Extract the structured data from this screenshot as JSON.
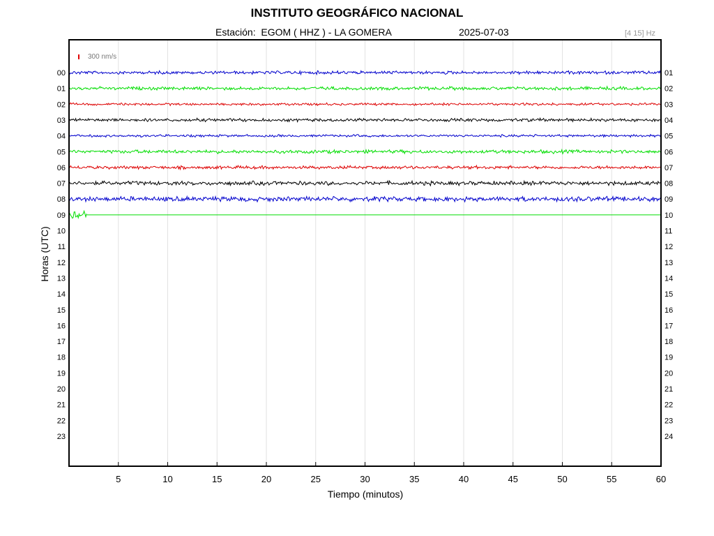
{
  "chart_data": {
    "type": "line",
    "title": "INSTITUTO GEOGRÁFICO NACIONAL",
    "subtitle": "Estación:  EGOM ( HHZ ) - LA GOMERA",
    "date": "2025-07-03",
    "filter_label": "[4 15] Hz",
    "scale_label": "300 nm/s",
    "xlabel": "Tiempo (minutos)",
    "ylabel": "Horas (UTC)",
    "xlim": [
      0,
      60
    ],
    "x_ticks": [
      "5",
      "10",
      "15",
      "20",
      "25",
      "30",
      "35",
      "40",
      "45",
      "50",
      "55",
      "60"
    ],
    "y_ticks_left": [
      "00",
      "01",
      "02",
      "03",
      "04",
      "05",
      "06",
      "07",
      "08",
      "09",
      "10",
      "11",
      "12",
      "13",
      "14",
      "15",
      "16",
      "17",
      "18",
      "19",
      "20",
      "21",
      "22",
      "23"
    ],
    "y_ticks_right": [
      "01",
      "02",
      "03",
      "04",
      "05",
      "06",
      "07",
      "08",
      "09",
      "10",
      "11",
      "12",
      "13",
      "14",
      "15",
      "16",
      "17",
      "18",
      "19",
      "20",
      "21",
      "22",
      "23",
      "24"
    ],
    "grid": "vertical",
    "colors": [
      "#0000cc",
      "#00dd00",
      "#dd0000",
      "#000000"
    ],
    "series": [
      {
        "hour": "00",
        "color": "#0000cc",
        "x_end": 60,
        "amplitude": 2
      },
      {
        "hour": "01",
        "color": "#00dd00",
        "x_end": 60,
        "amplitude": 2
      },
      {
        "hour": "02",
        "color": "#dd0000",
        "x_end": 60,
        "amplitude": 1.5
      },
      {
        "hour": "03",
        "color": "#000000",
        "x_end": 60,
        "amplitude": 2
      },
      {
        "hour": "04",
        "color": "#0000cc",
        "x_end": 60,
        "amplitude": 1.5
      },
      {
        "hour": "05",
        "color": "#00dd00",
        "x_end": 60,
        "amplitude": 2.2
      },
      {
        "hour": "06",
        "color": "#dd0000",
        "x_end": 60,
        "amplitude": 2
      },
      {
        "hour": "07",
        "color": "#000000",
        "x_end": 60,
        "amplitude": 2.5
      },
      {
        "hour": "08",
        "color": "#0000cc",
        "x_end": 60,
        "amplitude": 3
      },
      {
        "hour": "09",
        "color": "#00dd00",
        "x_end": 1.8,
        "amplitude": 5
      }
    ]
  }
}
